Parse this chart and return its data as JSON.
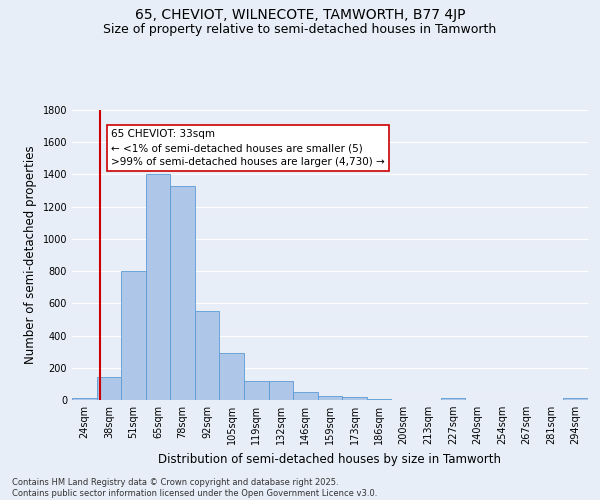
{
  "title_line1": "65, CHEVIOT, WILNECOTE, TAMWORTH, B77 4JP",
  "title_line2": "Size of property relative to semi-detached houses in Tamworth",
  "xlabel": "Distribution of semi-detached houses by size in Tamworth",
  "ylabel": "Number of semi-detached properties",
  "footnote": "Contains HM Land Registry data © Crown copyright and database right 2025.\nContains public sector information licensed under the Open Government Licence v3.0.",
  "bar_labels": [
    "24sqm",
    "38sqm",
    "51sqm",
    "65sqm",
    "78sqm",
    "92sqm",
    "105sqm",
    "119sqm",
    "132sqm",
    "146sqm",
    "159sqm",
    "173sqm",
    "186sqm",
    "200sqm",
    "213sqm",
    "227sqm",
    "240sqm",
    "254sqm",
    "267sqm",
    "281sqm",
    "294sqm"
  ],
  "bar_values": [
    15,
    145,
    800,
    1400,
    1330,
    550,
    290,
    120,
    120,
    50,
    25,
    20,
    5,
    0,
    0,
    10,
    0,
    0,
    0,
    0,
    10
  ],
  "bar_color": "#aec6e8",
  "bar_edge_color": "#5b9bd5",
  "bar_width": 1.0,
  "vline_x": 0.64,
  "vline_color": "#cc0000",
  "annotation_line1": "65 CHEVIOT: 33sqm",
  "annotation_line2": "← <1% of semi-detached houses are smaller (5)",
  "annotation_line3": ">99% of semi-detached houses are larger (4,730) →",
  "annotation_box_color": "#ffffff",
  "annotation_box_edge": "#cc0000",
  "ylim": [
    0,
    1800
  ],
  "yticks": [
    0,
    200,
    400,
    600,
    800,
    1000,
    1200,
    1400,
    1600,
    1800
  ],
  "background_color": "#e8eef8",
  "grid_color": "#ffffff",
  "title_fontsize": 10,
  "subtitle_fontsize": 9,
  "axis_label_fontsize": 8.5,
  "tick_fontsize": 7,
  "annotation_fontsize": 7.5
}
